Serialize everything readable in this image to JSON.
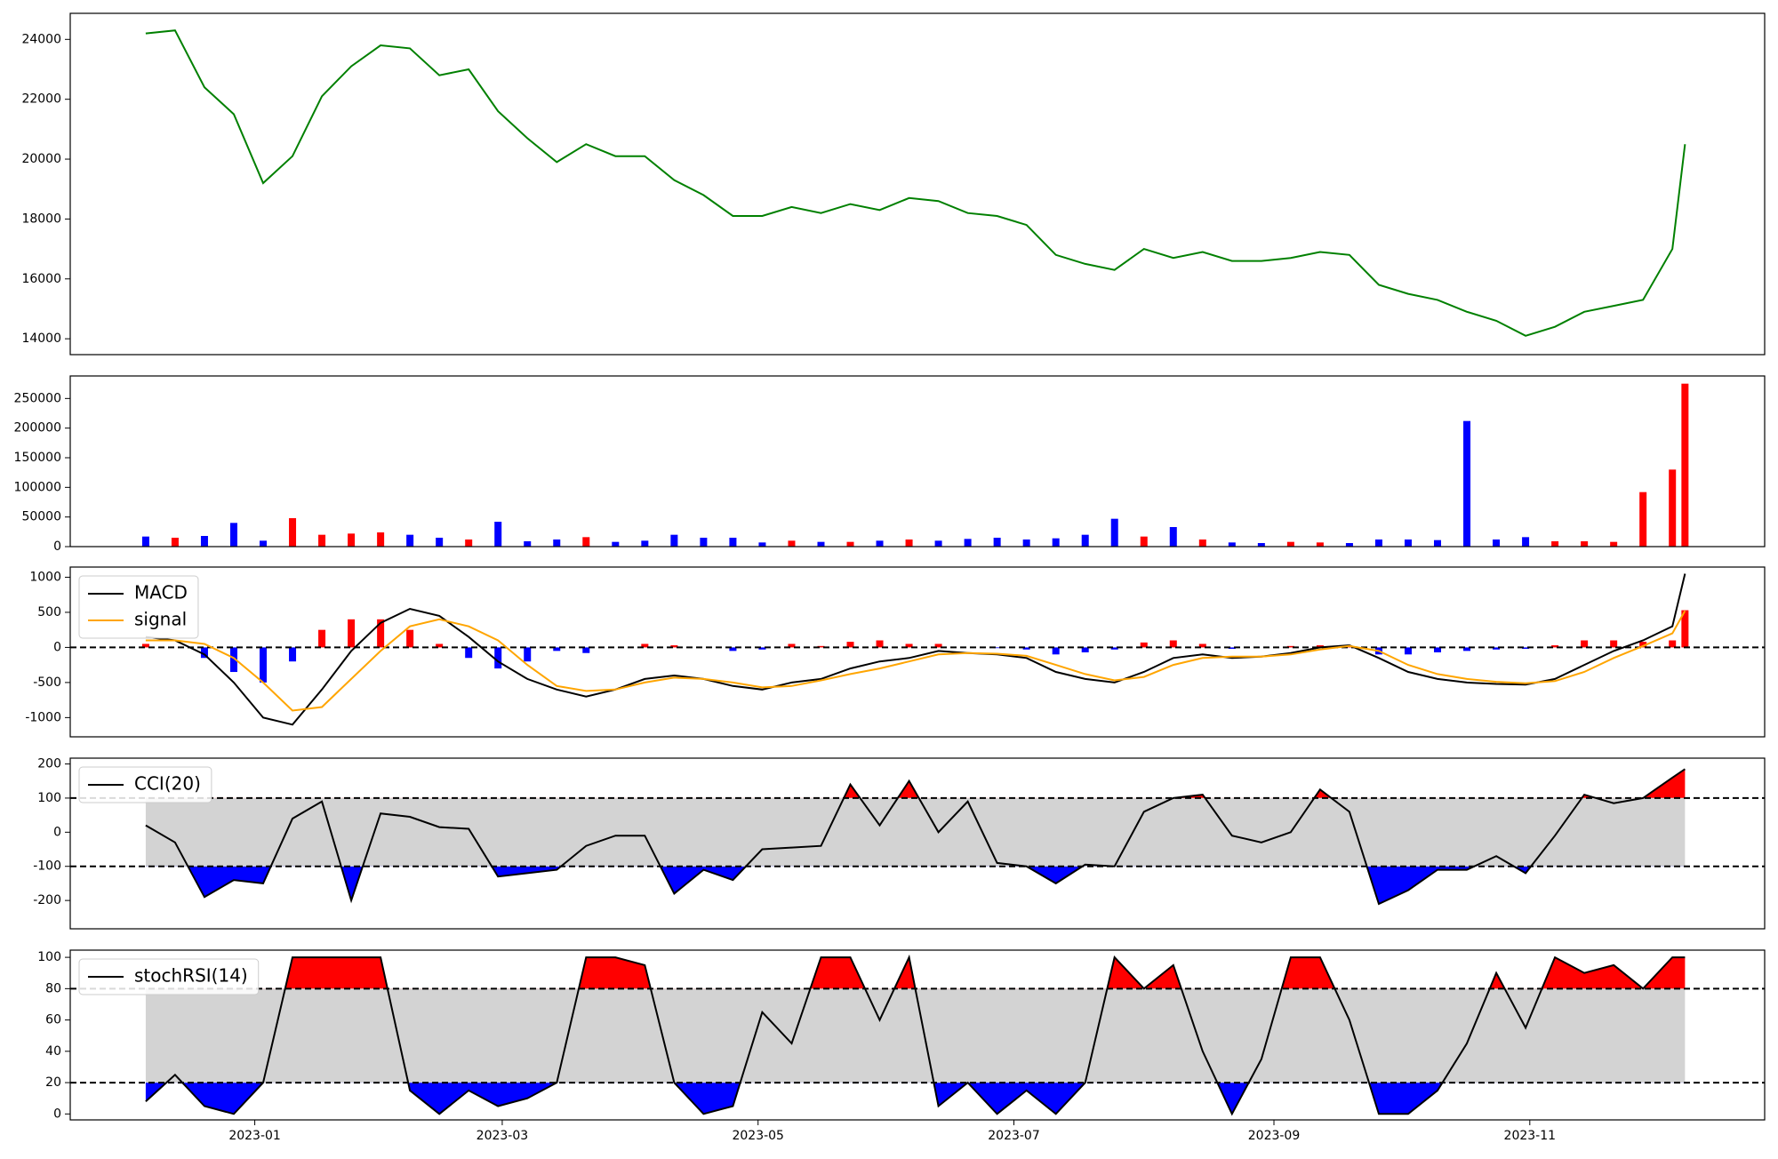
{
  "chart_data": {
    "type": "subplots",
    "x": [
      "2022-12-06",
      "2022-12-13",
      "2022-12-20",
      "2022-12-27",
      "2023-01-03",
      "2023-01-10",
      "2023-01-17",
      "2023-01-24",
      "2023-01-31",
      "2023-02-07",
      "2023-02-14",
      "2023-02-21",
      "2023-02-28",
      "2023-03-07",
      "2023-03-14",
      "2023-03-21",
      "2023-03-28",
      "2023-04-04",
      "2023-04-11",
      "2023-04-18",
      "2023-04-25",
      "2023-05-02",
      "2023-05-09",
      "2023-05-16",
      "2023-05-23",
      "2023-05-30",
      "2023-06-06",
      "2023-06-13",
      "2023-06-20",
      "2023-06-27",
      "2023-07-04",
      "2023-07-11",
      "2023-07-18",
      "2023-07-25",
      "2023-08-01",
      "2023-08-08",
      "2023-08-15",
      "2023-08-22",
      "2023-08-29",
      "2023-09-05",
      "2023-09-12",
      "2023-09-19",
      "2023-09-26",
      "2023-10-03",
      "2023-10-10",
      "2023-10-17",
      "2023-10-24",
      "2023-10-31",
      "2023-11-07",
      "2023-11-14",
      "2023-11-21",
      "2023-11-28",
      "2023-12-05",
      "2023-12-08"
    ],
    "xlim": [
      "2022-11-18",
      "2023-12-27"
    ],
    "xticks": [
      {
        "value": "2023-01-01",
        "label": "2023-01"
      },
      {
        "value": "2023-03-01",
        "label": "2023-03"
      },
      {
        "value": "2023-05-01",
        "label": "2023-05"
      },
      {
        "value": "2023-07-01",
        "label": "2023-07"
      },
      {
        "value": "2023-09-01",
        "label": "2023-09"
      },
      {
        "value": "2023-11-01",
        "label": "2023-11"
      }
    ],
    "panels": [
      {
        "type": "line",
        "ylim": [
          13470,
          24870
        ],
        "yticks": [
          14000,
          16000,
          18000,
          20000,
          22000,
          24000
        ],
        "series": [
          {
            "color": "green",
            "values": [
              24200,
              24300,
              22400,
              21500,
              19200,
              20100,
              22100,
              23100,
              23800,
              23700,
              22800,
              23000,
              21600,
              20700,
              19900,
              20500,
              20100,
              20100,
              19300,
              18800,
              18100,
              18100,
              18400,
              18200,
              18500,
              18300,
              18700,
              18600,
              18200,
              18100,
              17800,
              16800,
              16500,
              16300,
              17000,
              16700,
              16900,
              16600,
              16600,
              16700,
              16900,
              16800,
              15800,
              15500,
              15300,
              14900,
              14600,
              14100,
              14400,
              14900,
              15100,
              15300,
              17000,
              20500
            ]
          }
        ]
      },
      {
        "type": "bar",
        "ylim": [
          0,
          288000
        ],
        "yticks": [
          0,
          50000,
          100000,
          150000,
          200000,
          250000
        ],
        "up_color": "red",
        "down_color": "blue",
        "values": [
          17000,
          15000,
          18000,
          40000,
          10000,
          48000,
          20000,
          22000,
          24000,
          20000,
          15000,
          12000,
          42000,
          9000,
          12000,
          16000,
          8000,
          10000,
          20000,
          15000,
          15000,
          7000,
          10000,
          8000,
          8000,
          10000,
          12000,
          10000,
          13000,
          15000,
          12000,
          14000,
          20000,
          47000,
          17000,
          33000,
          12000,
          7000,
          6000,
          8000,
          7000,
          6000,
          12000,
          12000,
          11000,
          212000,
          12000,
          16000,
          9000,
          9000,
          8000,
          92000,
          130000,
          275000
        ]
      },
      {
        "type": "line",
        "ylim": [
          -1274,
          1145
        ],
        "yticks": [
          -1000,
          -500,
          0,
          500,
          1000
        ],
        "hlines": [
          0
        ],
        "legend": "upper left",
        "series": [
          {
            "type": "bar",
            "pos_color": "red",
            "neg_color": "blue",
            "values": [
              50,
              0,
              -150,
              -350,
              -500,
              -200,
              250,
              400,
              400,
              250,
              50,
              -150,
              -300,
              -200,
              -50,
              -80,
              0,
              50,
              30,
              0,
              -50,
              -30,
              50,
              20,
              80,
              100,
              50,
              50,
              0,
              -10,
              -30,
              -100,
              -70,
              -30,
              70,
              100,
              50,
              -20,
              0,
              20,
              30,
              10,
              -100,
              -100,
              -70,
              -50,
              -30,
              -20,
              30,
              100,
              100,
              80,
              100,
              530
            ]
          },
          {
            "name": "MACD",
            "color": "black",
            "values": [
              150,
              100,
              -100,
              -500,
              -1000,
              -1100,
              -600,
              -50,
              350,
              550,
              450,
              150,
              -200,
              -450,
              -600,
              -700,
              -600,
              -450,
              -400,
              -450,
              -550,
              -600,
              -500,
              -450,
              -300,
              -200,
              -150,
              -50,
              -80,
              -100,
              -150,
              -350,
              -450,
              -500,
              -350,
              -150,
              -100,
              -150,
              -130,
              -80,
              0,
              30,
              -150,
              -350,
              -450,
              -500,
              -520,
              -530,
              -450,
              -250,
              -50,
              100,
              300,
              1050
            ]
          },
          {
            "name": "signal",
            "color": "orange",
            "values": [
              100,
              100,
              50,
              -150,
              -500,
              -900,
              -850,
              -450,
              -50,
              300,
              400,
              300,
              100,
              -250,
              -550,
              -620,
              -600,
              -500,
              -430,
              -450,
              -500,
              -570,
              -550,
              -470,
              -380,
              -300,
              -200,
              -100,
              -80,
              -90,
              -120,
              -250,
              -380,
              -470,
              -420,
              -250,
              -150,
              -130,
              -130,
              -100,
              -30,
              20,
              -50,
              -250,
              -380,
              -450,
              -490,
              -510,
              -480,
              -350,
              -150,
              20,
              200,
              520
            ]
          }
        ]
      },
      {
        "type": "line",
        "ylim": [
          -283,
          217
        ],
        "yticks": [
          -200,
          -100,
          0,
          100,
          200
        ],
        "hlines": [
          100,
          -100
        ],
        "band": [
          -100,
          100
        ],
        "band_color": "lightgray",
        "above_color": "red",
        "below_color": "blue",
        "legend": "upper left",
        "series": [
          {
            "name": "CCI(20)",
            "color": "black",
            "values": [
              20,
              -30,
              -190,
              -140,
              -150,
              40,
              90,
              -200,
              55,
              45,
              15,
              10,
              -130,
              -120,
              -110,
              -40,
              -10,
              -10,
              -180,
              -110,
              -140,
              -50,
              -45,
              -40,
              140,
              20,
              150,
              0,
              90,
              -90,
              -100,
              -150,
              -95,
              -100,
              60,
              100,
              110,
              -10,
              -30,
              0,
              125,
              60,
              -210,
              -170,
              -110,
              -110,
              -70,
              -120,
              -10,
              110,
              85,
              100,
              160,
              185
            ]
          }
        ]
      },
      {
        "type": "line",
        "ylim": [
          -3.8,
          104.6
        ],
        "yticks": [
          0,
          20,
          40,
          60,
          80,
          100
        ],
        "hlines": [
          80,
          20
        ],
        "band": [
          20,
          80
        ],
        "band_color": "lightgray",
        "above_color": "red",
        "below_color": "blue",
        "legend": "upper left",
        "series": [
          {
            "name": "stochRSI(14)",
            "color": "black",
            "values": [
              8,
              25,
              5,
              0,
              20,
              100,
              100,
              100,
              100,
              15,
              0,
              15,
              5,
              10,
              20,
              100,
              100,
              95,
              20,
              0,
              5,
              65,
              45,
              100,
              100,
              60,
              100,
              5,
              20,
              0,
              15,
              0,
              20,
              100,
              80,
              95,
              40,
              0,
              35,
              100,
              100,
              60,
              0,
              0,
              15,
              45,
              90,
              55,
              100,
              90,
              95,
              80,
              100,
              100
            ]
          }
        ]
      }
    ]
  }
}
